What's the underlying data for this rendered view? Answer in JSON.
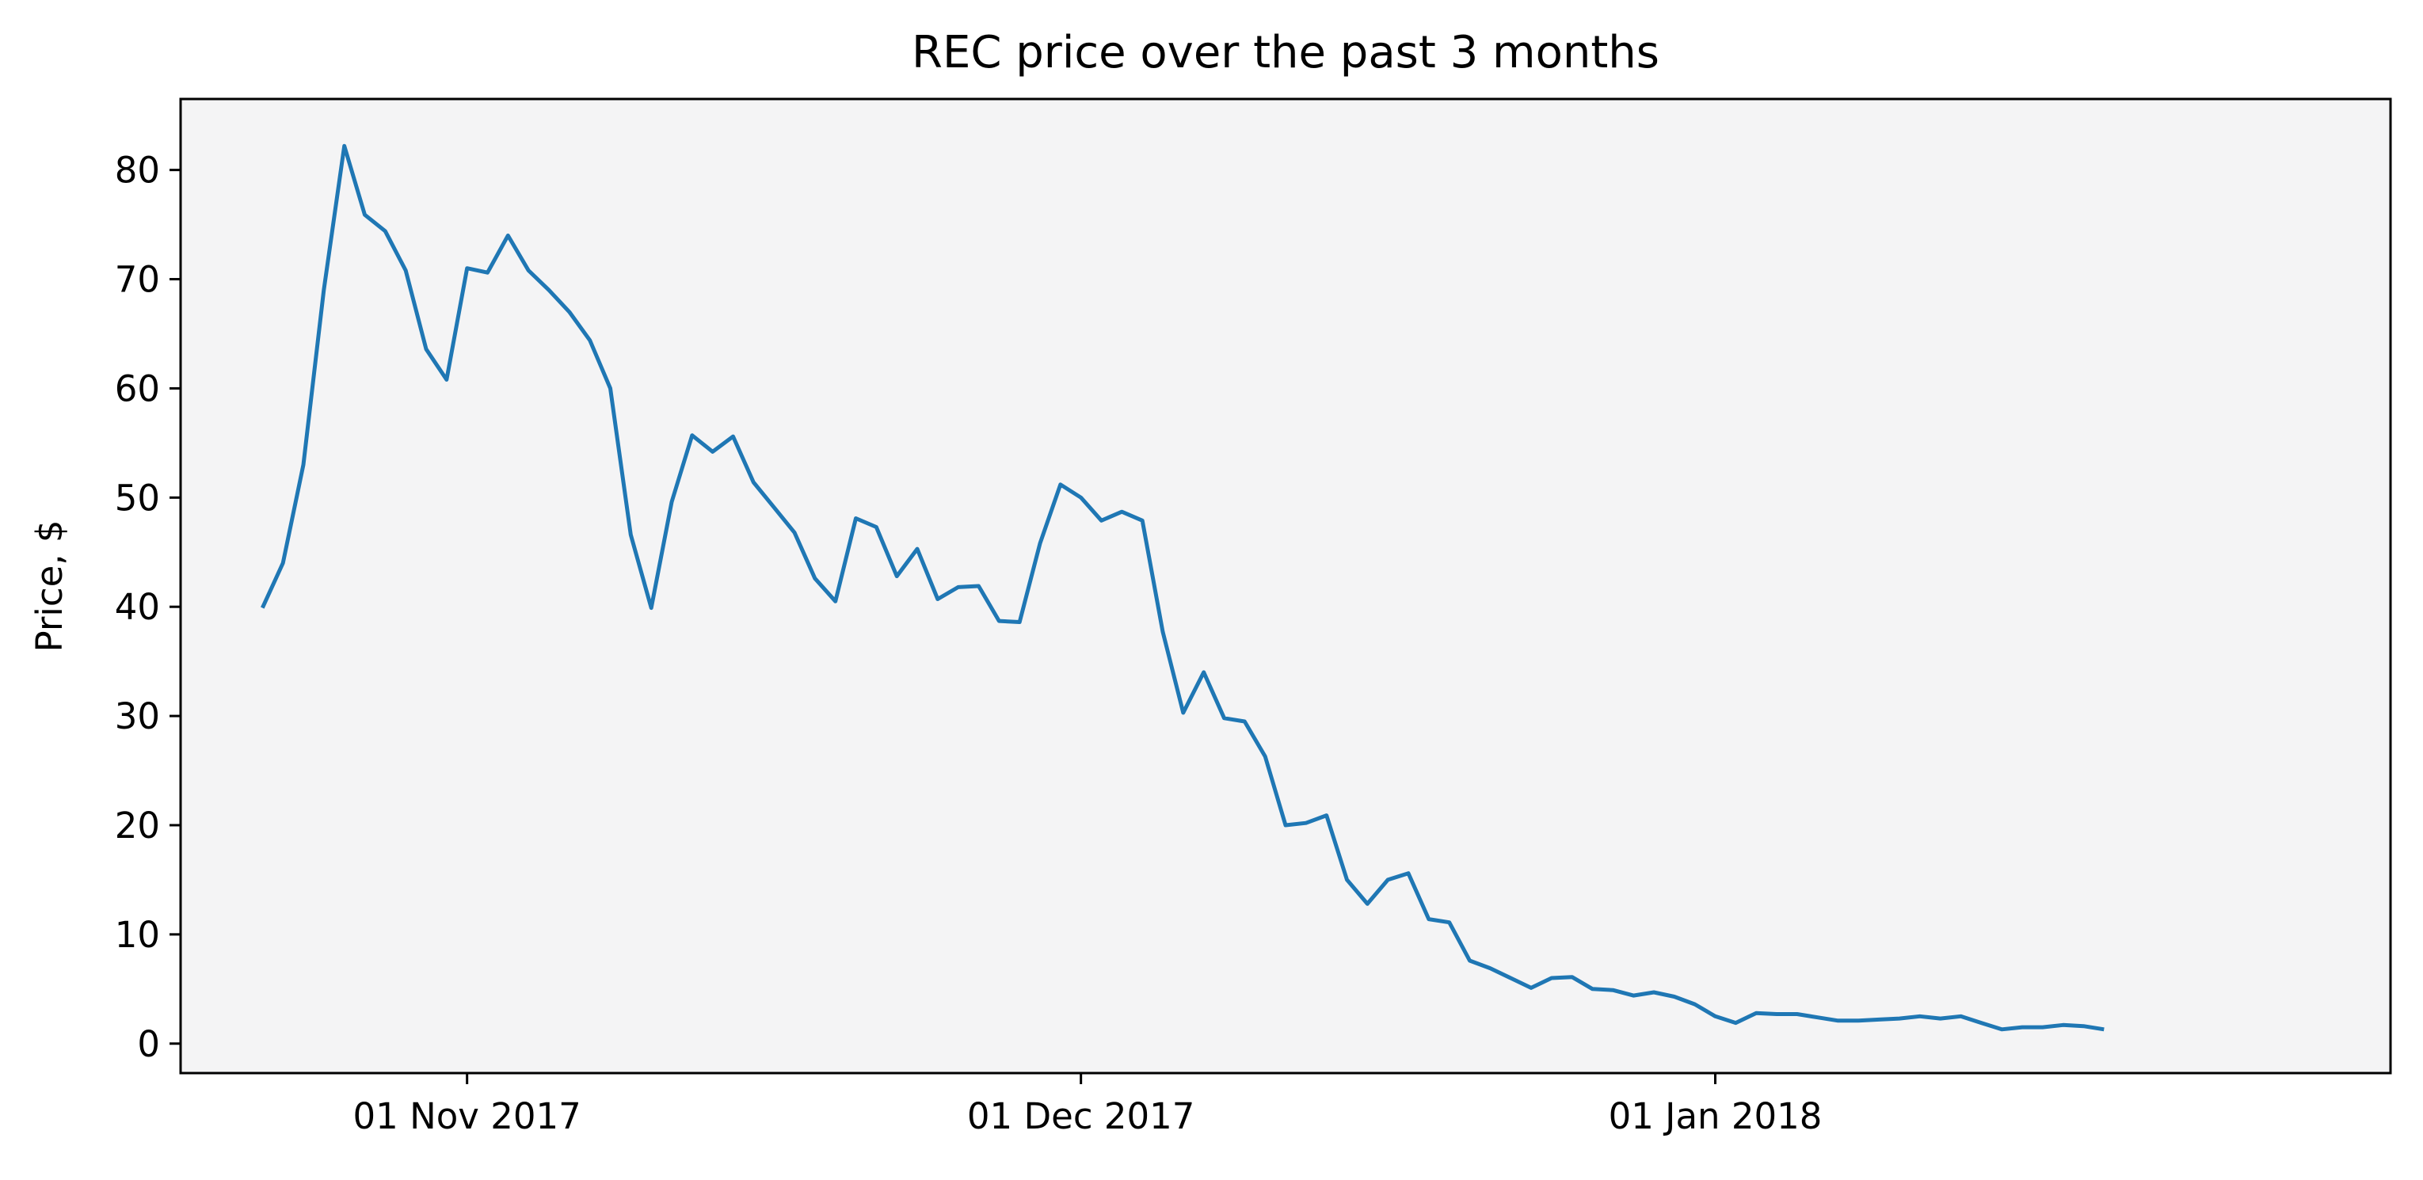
{
  "chart_data": {
    "type": "line",
    "title": "REC price over the past 3 months",
    "xlabel": "",
    "ylabel": "Price, $",
    "x_axis": "date",
    "xlim": [
      "2017-10-18",
      "2018-02-03"
    ],
    "ylim": [
      -2.7,
      86.5
    ],
    "x_ticks": [
      {
        "date": "2017-11-01",
        "label": "01 Nov 2017"
      },
      {
        "date": "2017-12-01",
        "label": "01 Dec 2017"
      },
      {
        "date": "2018-01-01",
        "label": "01 Jan 2018"
      }
    ],
    "y_ticks": [
      0,
      10,
      20,
      30,
      40,
      50,
      60,
      70,
      80
    ],
    "grid": false,
    "plot_background": "#f4f4f5",
    "series": [
      {
        "color": "#1f77b4",
        "points": [
          [
            "2017-10-22",
            39.9
          ],
          [
            "2017-10-23",
            44.0
          ],
          [
            "2017-10-24",
            53.0
          ],
          [
            "2017-10-25",
            69.0
          ],
          [
            "2017-10-26",
            82.2
          ],
          [
            "2017-10-27",
            75.9
          ],
          [
            "2017-10-28",
            74.4
          ],
          [
            "2017-10-29",
            70.8
          ],
          [
            "2017-10-30",
            63.6
          ],
          [
            "2017-10-31",
            60.8
          ],
          [
            "2017-11-01",
            71.0
          ],
          [
            "2017-11-02",
            70.6
          ],
          [
            "2017-11-03",
            74.0
          ],
          [
            "2017-11-04",
            70.8
          ],
          [
            "2017-11-05",
            69.0
          ],
          [
            "2017-11-06",
            67.0
          ],
          [
            "2017-11-07",
            64.4
          ],
          [
            "2017-11-08",
            60.0
          ],
          [
            "2017-11-09",
            46.6
          ],
          [
            "2017-11-10",
            39.9
          ],
          [
            "2017-11-11",
            49.6
          ],
          [
            "2017-11-12",
            55.7
          ],
          [
            "2017-11-13",
            54.2
          ],
          [
            "2017-11-14",
            55.6
          ],
          [
            "2017-11-15",
            51.4
          ],
          [
            "2017-11-16",
            49.1
          ],
          [
            "2017-11-17",
            46.8
          ],
          [
            "2017-11-18",
            42.6
          ],
          [
            "2017-11-19",
            40.5
          ],
          [
            "2017-11-20",
            48.1
          ],
          [
            "2017-11-21",
            47.3
          ],
          [
            "2017-11-22",
            42.8
          ],
          [
            "2017-11-23",
            45.3
          ],
          [
            "2017-11-24",
            40.7
          ],
          [
            "2017-11-25",
            41.8
          ],
          [
            "2017-11-26",
            41.9
          ],
          [
            "2017-11-27",
            38.7
          ],
          [
            "2017-11-28",
            38.6
          ],
          [
            "2017-11-29",
            45.8
          ],
          [
            "2017-11-30",
            51.2
          ],
          [
            "2017-12-01",
            50.0
          ],
          [
            "2017-12-02",
            47.9
          ],
          [
            "2017-12-03",
            48.7
          ],
          [
            "2017-12-04",
            47.9
          ],
          [
            "2017-12-05",
            37.7
          ],
          [
            "2017-12-06",
            30.3
          ],
          [
            "2017-12-07",
            34.0
          ],
          [
            "2017-12-08",
            29.8
          ],
          [
            "2017-12-09",
            29.5
          ],
          [
            "2017-12-10",
            26.3
          ],
          [
            "2017-12-11",
            20.0
          ],
          [
            "2017-12-12",
            20.2
          ],
          [
            "2017-12-13",
            20.9
          ],
          [
            "2017-12-14",
            15.0
          ],
          [
            "2017-12-15",
            12.8
          ],
          [
            "2017-12-16",
            15.0
          ],
          [
            "2017-12-17",
            15.6
          ],
          [
            "2017-12-18",
            11.4
          ],
          [
            "2017-12-19",
            11.1
          ],
          [
            "2017-12-20",
            7.6
          ],
          [
            "2017-12-21",
            6.9
          ],
          [
            "2017-12-22",
            6.0
          ],
          [
            "2017-12-23",
            5.1
          ],
          [
            "2017-12-24",
            6.0
          ],
          [
            "2017-12-25",
            6.1
          ],
          [
            "2017-12-26",
            5.0
          ],
          [
            "2017-12-27",
            4.9
          ],
          [
            "2017-12-28",
            4.4
          ],
          [
            "2017-12-29",
            4.7
          ],
          [
            "2017-12-30",
            4.3
          ],
          [
            "2017-12-31",
            3.6
          ],
          [
            "2018-01-01",
            2.5
          ],
          [
            "2018-01-02",
            1.9
          ],
          [
            "2018-01-03",
            2.8
          ],
          [
            "2018-01-04",
            2.7
          ],
          [
            "2018-01-05",
            2.7
          ],
          [
            "2018-01-06",
            2.4
          ],
          [
            "2018-01-07",
            2.1
          ],
          [
            "2018-01-08",
            2.1
          ],
          [
            "2018-01-09",
            2.2
          ],
          [
            "2018-01-10",
            2.3
          ],
          [
            "2018-01-11",
            2.5
          ],
          [
            "2018-01-12",
            2.3
          ],
          [
            "2018-01-13",
            2.5
          ],
          [
            "2018-01-14",
            1.9
          ],
          [
            "2018-01-15",
            1.3
          ],
          [
            "2018-01-16",
            1.5
          ],
          [
            "2018-01-17",
            1.5
          ],
          [
            "2018-01-18",
            1.7
          ],
          [
            "2018-01-19",
            1.6
          ],
          [
            "2018-01-20",
            1.3
          ]
        ]
      }
    ]
  }
}
